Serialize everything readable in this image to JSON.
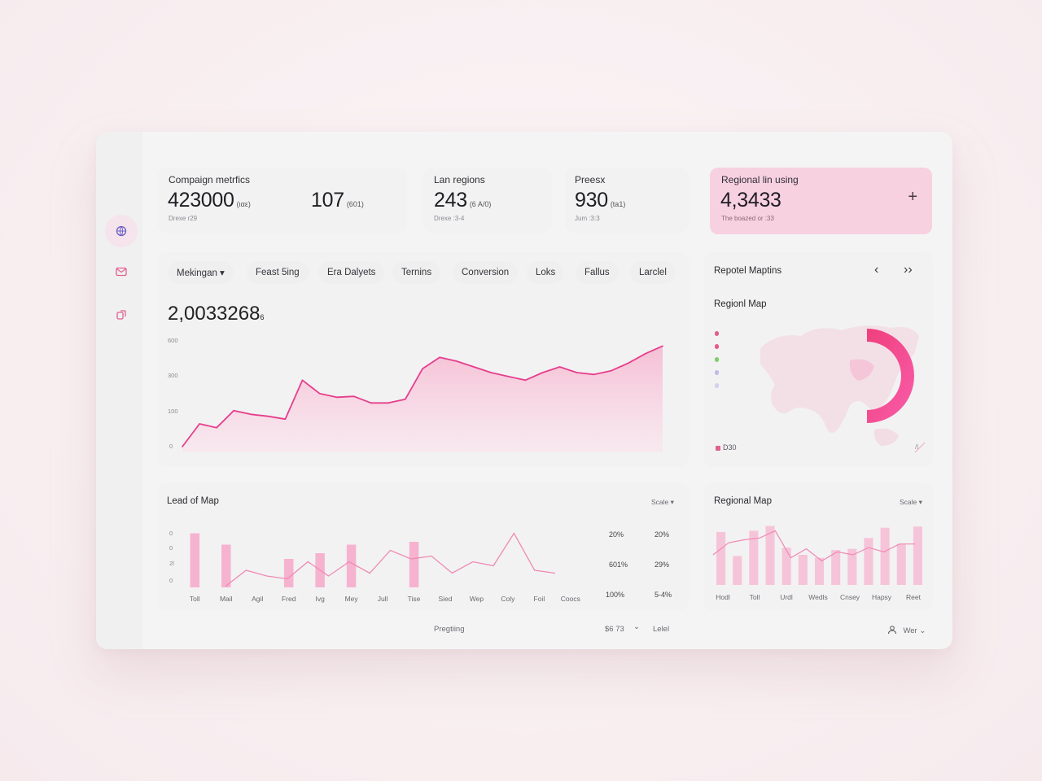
{
  "kpis": [
    {
      "label": "Compaign metrfics",
      "value": "423000",
      "suffix": "(ιαε)",
      "sub": "Drexe r29"
    },
    {
      "label": "",
      "value": "107",
      "suffix": "(601)",
      "sub": ""
    },
    {
      "label": "Lan regions",
      "value": "243",
      "suffix": "(6 A/0)",
      "sub": "Drexe :3-4"
    },
    {
      "label": "Preesx",
      "value": "930",
      "suffix": "(ta1)",
      "sub": "Jum :3:3"
    },
    {
      "label": "Regional lin using",
      "value": "4,3433",
      "suffix": "",
      "sub": "The boazed or :33"
    }
  ],
  "highlight_card": {
    "plus": "+"
  },
  "tabs": [
    {
      "label": "Mekingan ▾"
    },
    {
      "label": "Feast 5ing"
    },
    {
      "label": "Era Dalyets"
    },
    {
      "label": "Ternins"
    },
    {
      "label": "Conversion"
    },
    {
      "label": "Loks"
    },
    {
      "label": "Fallus"
    },
    {
      "label": "Larclel"
    }
  ],
  "main_chart": {
    "headline": "2,0033268",
    "headline_suffix": "6",
    "y_ticks": [
      "600",
      "300",
      "100",
      "0"
    ]
  },
  "regional_panel": {
    "title": "Repotel Maptins",
    "subtitle": "Regionl Map",
    "prev": "‹",
    "next": "››",
    "legend_label": "D30",
    "corner_label": "/l"
  },
  "bottom_left": {
    "title": "Lead of Map",
    "scale": "Scale ▾",
    "y_ticks": [
      "0",
      "0",
      "2l",
      "0"
    ],
    "categories": [
      "Toll",
      "Mail",
      "Agil",
      "Fred",
      "Ivg",
      "Mey",
      "Jull",
      "Tise",
      "Sied",
      "Wep",
      "Coly",
      "Foil",
      "Coocs"
    ],
    "pct_col1": [
      "20%",
      "601%",
      "100%"
    ],
    "pct_col2": [
      "20%",
      "29%",
      "5-4%"
    ]
  },
  "bottom_right": {
    "title": "Regional Map",
    "scale": "Scale ▾",
    "categories": [
      "Hodl",
      "Toll",
      "Urdl",
      "Wedls",
      "Cnsey",
      "Hapsy",
      "Reet"
    ]
  },
  "footer": {
    "center": "Pregtiing",
    "value": "$6 73",
    "chevron": "⌄",
    "label": "Lelel",
    "user_label": "Wer ⌄"
  },
  "chart_data": [
    {
      "type": "area",
      "title": "2,0033268",
      "ylim": [
        0,
        600
      ],
      "x": [
        0,
        1,
        2,
        3,
        4,
        5,
        6,
        7,
        8,
        9,
        10,
        11,
        12,
        13,
        14,
        15,
        16,
        17,
        18,
        19,
        20,
        21,
        22,
        23,
        24,
        25,
        26,
        27,
        28
      ],
      "values": [
        30,
        150,
        130,
        220,
        200,
        190,
        175,
        380,
        310,
        290,
        295,
        260,
        260,
        280,
        440,
        500,
        480,
        450,
        420,
        400,
        380,
        420,
        450,
        420,
        410,
        430,
        470,
        520,
        560
      ]
    },
    {
      "type": "bar",
      "title": "Lead of Map",
      "categories": [
        "Toll",
        "Mail",
        "Agil",
        "Fred",
        "Ivg",
        "Mey",
        "Jull",
        "Tise",
        "Sied",
        "Wep",
        "Coly",
        "Foil",
        "Coocs"
      ],
      "bars": [
        0.95,
        0.75,
        0,
        0.5,
        0.6,
        0.75,
        0,
        0.8,
        0,
        0,
        0,
        0,
        0
      ],
      "line": [
        0.02,
        0.3,
        0.2,
        0.15,
        0.45,
        0.2,
        0.45,
        0.25,
        0.65,
        0.5,
        0.55,
        0.25,
        0.45,
        0.38,
        0.95,
        0.3,
        0.25
      ]
    },
    {
      "type": "bar",
      "title": "Regional Map",
      "categories": [
        "Hodl",
        "Toll",
        "Urdl",
        "Wedls",
        "Cnsey",
        "Hapsy",
        "Reet"
      ],
      "bars": [
        0.88,
        0.48,
        0.9,
        0.98,
        0.62,
        0.5,
        0.45,
        0.58,
        0.6,
        0.78,
        0.95,
        0.68,
        0.97
      ],
      "line": [
        0.5,
        0.7,
        0.75,
        0.78,
        0.9,
        0.45,
        0.6,
        0.4,
        0.55,
        0.5,
        0.62,
        0.55,
        0.68,
        0.68
      ]
    }
  ],
  "colors": {
    "accent": "#e63e8c",
    "fill": "#f7c3d8",
    "highlight": "#f8d1e0"
  }
}
